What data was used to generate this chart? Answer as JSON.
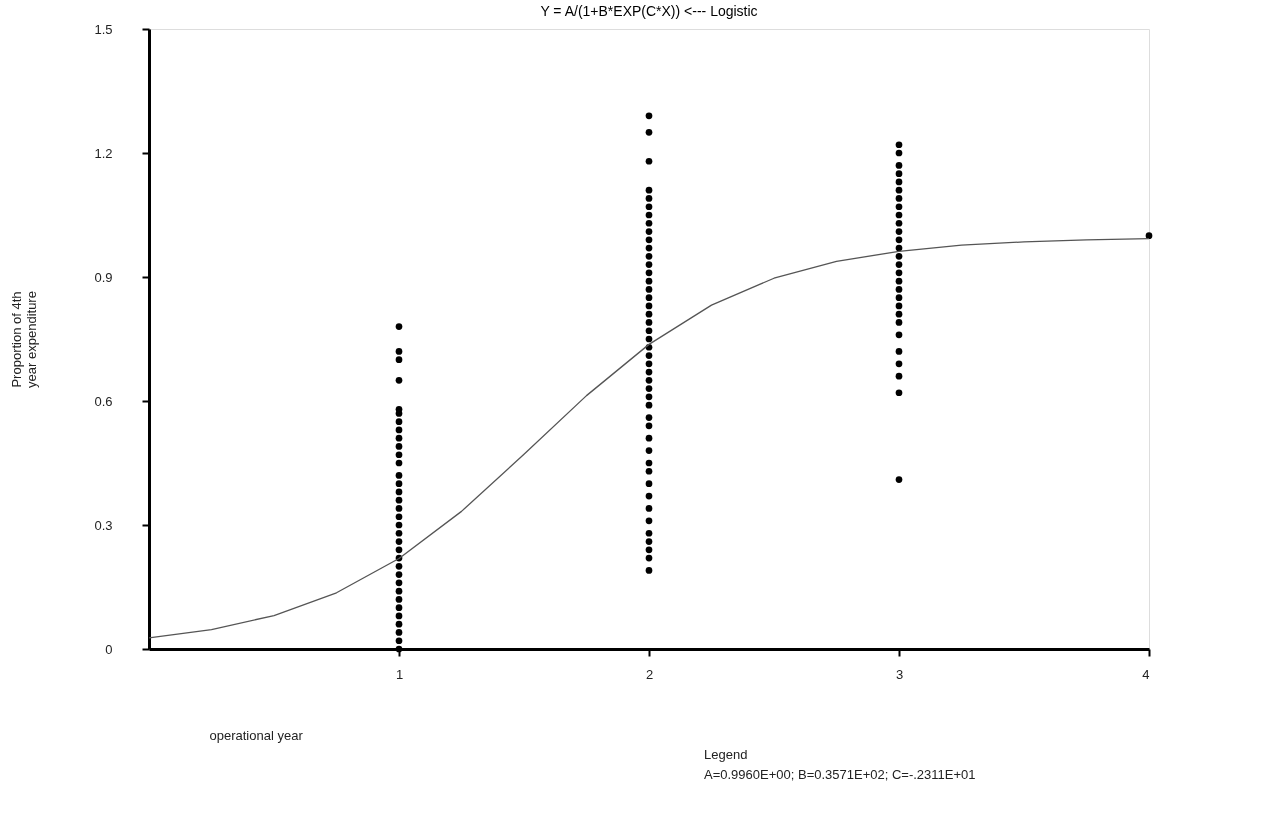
{
  "chart_data": {
    "type": "scatter",
    "title": "Y = A/(1+B*EXP(C*X)) <--- Logistic",
    "xlabel": "operational year",
    "ylabel": "Proportion of 4th\nyear expenditure",
    "annotations": [
      "Legend",
      "A=0.9960E+00;  B=0.3571E+02;  C=-.2311E+01"
    ],
    "xlim": [
      0,
      4
    ],
    "ylim": [
      0,
      1.5
    ],
    "xticks": [
      1,
      2,
      3,
      4
    ],
    "yticks": [
      0,
      0.3,
      0.6,
      0.9,
      1.2,
      1.5
    ],
    "grid": false,
    "series": [
      {
        "color": "#000000",
        "marker": "circle",
        "x": [
          1,
          1,
          1,
          1,
          1,
          1,
          1,
          1,
          1,
          1,
          1,
          1,
          1,
          1,
          1,
          1,
          1,
          1,
          1,
          1,
          1,
          1,
          1,
          1,
          1,
          1,
          1,
          1,
          1,
          1,
          1,
          1,
          1,
          1,
          2,
          2,
          2,
          2,
          2,
          2,
          2,
          2,
          2,
          2,
          2,
          2,
          2,
          2,
          2,
          2,
          2,
          2,
          2,
          2,
          2,
          2,
          2,
          2,
          2,
          2,
          2,
          2,
          2,
          2,
          2,
          2,
          2,
          2,
          2,
          2,
          2,
          2,
          2,
          2,
          2,
          2,
          2,
          2,
          2,
          3,
          3,
          3,
          3,
          3,
          3,
          3,
          3,
          3,
          3,
          3,
          3,
          3,
          3,
          3,
          3,
          3,
          3,
          3,
          3,
          3,
          3,
          3,
          3,
          3,
          3,
          3,
          3,
          4
        ],
        "values": [
          0.78,
          0.72,
          0.7,
          0.65,
          0.58,
          0.57,
          0.55,
          0.53,
          0.51,
          0.49,
          0.47,
          0.45,
          0.42,
          0.4,
          0.38,
          0.36,
          0.34,
          0.32,
          0.3,
          0.28,
          0.26,
          0.24,
          0.22,
          0.2,
          0.18,
          0.16,
          0.14,
          0.12,
          0.1,
          0.08,
          0.06,
          0.04,
          0.02,
          0.0,
          1.29,
          1.25,
          1.18,
          1.11,
          1.09,
          1.07,
          1.05,
          1.03,
          1.01,
          0.99,
          0.97,
          0.95,
          0.93,
          0.91,
          0.89,
          0.87,
          0.85,
          0.83,
          0.81,
          0.79,
          0.77,
          0.75,
          0.73,
          0.71,
          0.69,
          0.67,
          0.65,
          0.63,
          0.61,
          0.59,
          0.56,
          0.54,
          0.51,
          0.48,
          0.45,
          0.43,
          0.4,
          0.37,
          0.34,
          0.31,
          0.28,
          0.26,
          0.24,
          0.22,
          0.19,
          1.22,
          1.2,
          1.17,
          1.15,
          1.13,
          1.11,
          1.09,
          1.07,
          1.05,
          1.03,
          1.01,
          0.99,
          0.97,
          0.95,
          0.93,
          0.91,
          0.89,
          0.87,
          0.85,
          0.83,
          0.81,
          0.79,
          0.76,
          0.72,
          0.69,
          0.66,
          0.62,
          0.41,
          1.0
        ]
      },
      {
        "type": "line",
        "color": "#555555",
        "marker": "none",
        "line_style": "solid",
        "x": [
          0,
          0.25,
          0.5,
          0.75,
          1,
          1.25,
          1.5,
          1.75,
          2,
          2.25,
          2.5,
          2.75,
          3,
          3.25,
          3.5,
          3.75,
          4
        ],
        "values": [
          0.027,
          0.047,
          0.081,
          0.136,
          0.219,
          0.333,
          0.471,
          0.613,
          0.737,
          0.832,
          0.897,
          0.938,
          0.962,
          0.977,
          0.985,
          0.99,
          0.993
        ]
      }
    ]
  }
}
